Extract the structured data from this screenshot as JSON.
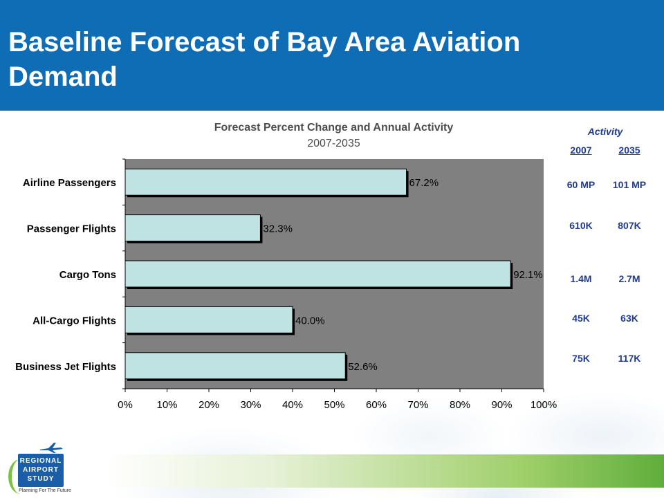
{
  "slide": {
    "title": "Baseline Forecast of Bay Area Aviation Demand"
  },
  "chart_data": {
    "type": "bar",
    "orientation": "horizontal",
    "title": "Forecast Percent Change and Annual Activity",
    "subtitle": "2007-2035",
    "categories": [
      "Airline Passengers",
      "Passenger Flights",
      "Cargo Tons",
      "All-Cargo Flights",
      "Business Jet Flights"
    ],
    "values": [
      67.2,
      32.3,
      92.1,
      40.0,
      52.6
    ],
    "value_labels": [
      "67.2%",
      "32.3%",
      "92.1%",
      "40.0%",
      "52.6%"
    ],
    "xlim": [
      0,
      100
    ],
    "x_ticks": [
      0,
      10,
      20,
      30,
      40,
      50,
      60,
      70,
      80,
      90,
      100
    ],
    "x_tick_labels": [
      "0%",
      "10%",
      "20%",
      "30%",
      "40%",
      "50%",
      "60%",
      "70%",
      "80%",
      "90%",
      "100%"
    ],
    "grid": false,
    "legend": "none",
    "colors": {
      "plot_background": "#808080",
      "bar_fill": "#bfe3e3",
      "bar_border": "#000000"
    }
  },
  "activity": {
    "heading": "Activity",
    "columns": [
      "2007",
      "2035"
    ],
    "rows": [
      [
        "60 MP",
        "101 MP"
      ],
      [
        "610K",
        "807K"
      ],
      [
        "1.4M",
        "2.7M"
      ],
      [
        "45K",
        "63K"
      ],
      [
        "75K",
        "117K"
      ]
    ]
  },
  "logo": {
    "lines": [
      "REGIONAL",
      "AIRPORT",
      "STUDY"
    ],
    "tagline": "Planning For The Future",
    "icon": "airplane-icon"
  },
  "colors": {
    "header": "#0f6db5",
    "activity_text": "#1f3b8f",
    "footer_green": "#5fae3c"
  }
}
